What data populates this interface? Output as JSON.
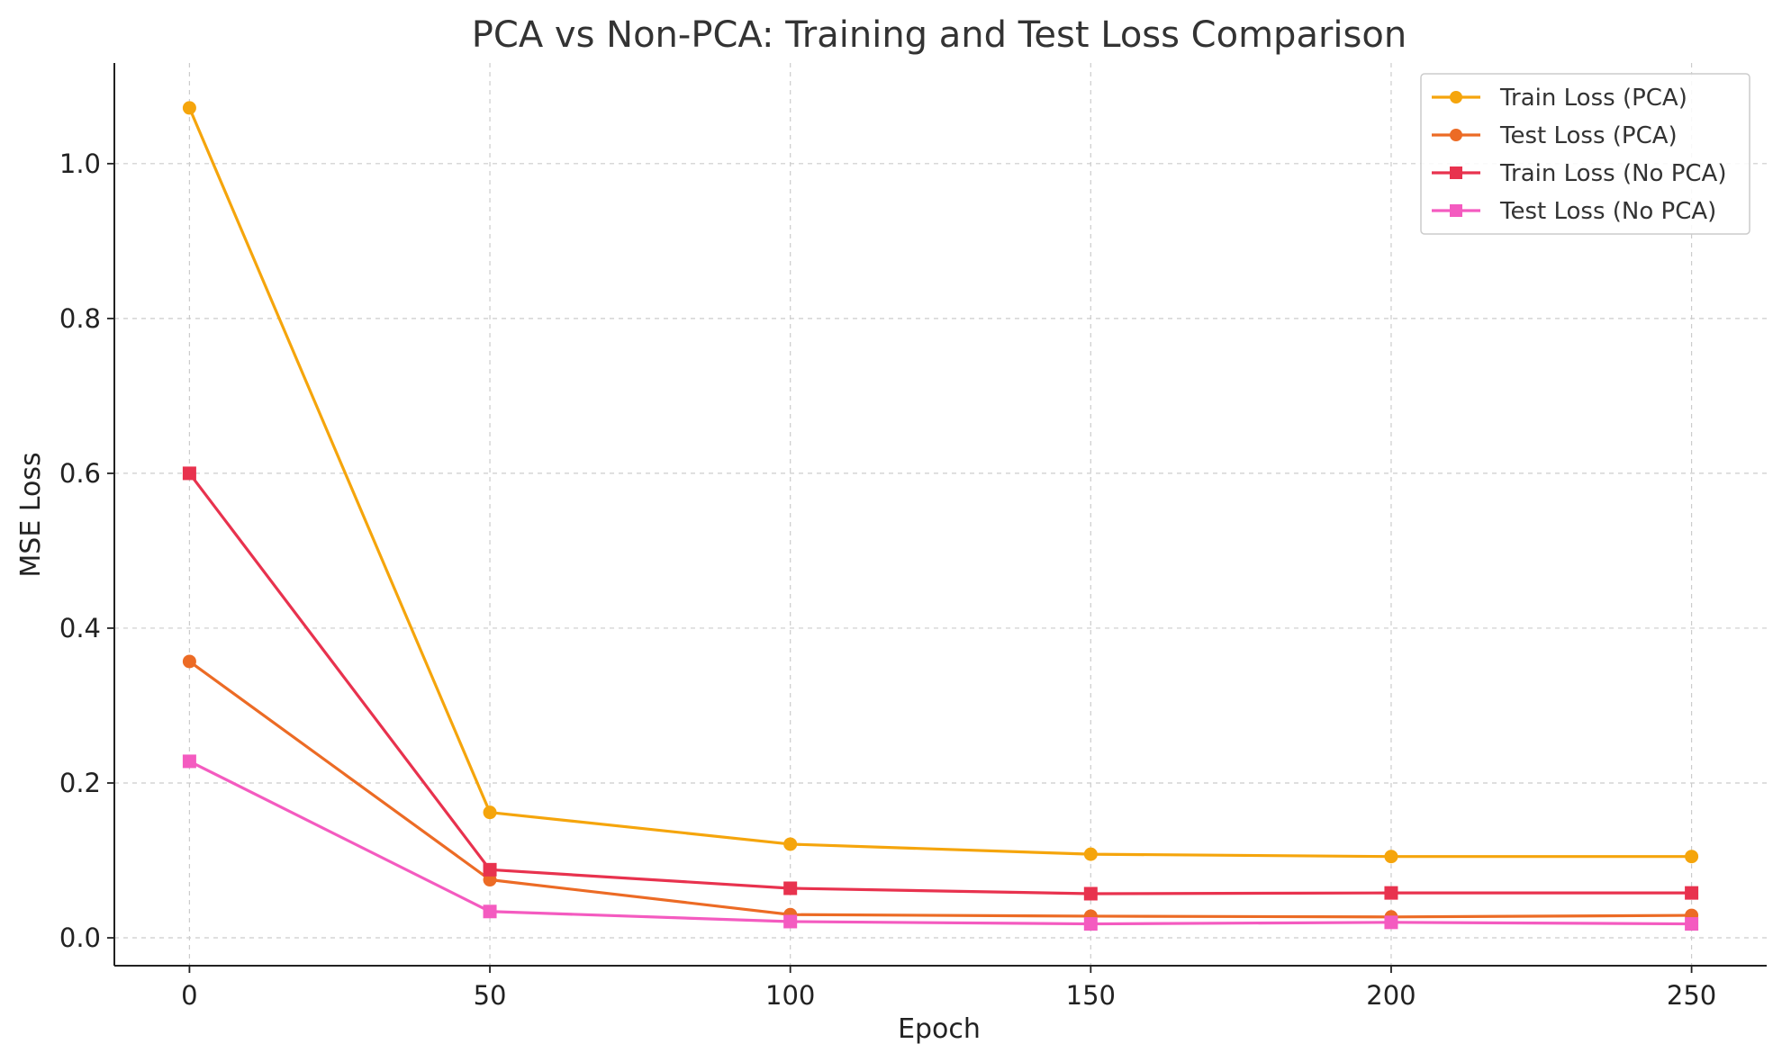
{
  "chart_data": {
    "type": "line",
    "title": "PCA vs Non-PCA: Training and Test Loss Comparison",
    "xlabel": "Epoch",
    "ylabel": "MSE Loss",
    "x": [
      0,
      50,
      100,
      150,
      200,
      250
    ],
    "xticks": [
      "0",
      "50",
      "100",
      "150",
      "200",
      "250"
    ],
    "yticks": [
      "0.0",
      "0.2",
      "0.4",
      "0.6",
      "0.8",
      "1.0"
    ],
    "xlim": [
      -12.5,
      262.5
    ],
    "ylim": [
      -0.036,
      1.13
    ],
    "grid": true,
    "legend_position": "top-right",
    "series": [
      {
        "name": "Train Loss (PCA)",
        "color": "#f5a50c",
        "marker": "circle",
        "values": [
          1.072,
          0.162,
          0.121,
          0.108,
          0.105,
          0.105
        ]
      },
      {
        "name": "Test Loss (PCA)",
        "color": "#ec6b25",
        "marker": "circle",
        "values": [
          0.357,
          0.075,
          0.03,
          0.028,
          0.027,
          0.029
        ]
      },
      {
        "name": "Train Loss (No PCA)",
        "color": "#e8324e",
        "marker": "square",
        "values": [
          0.6,
          0.088,
          0.064,
          0.057,
          0.058,
          0.058
        ]
      },
      {
        "name": "Test Loss (No PCA)",
        "color": "#f45bc0",
        "marker": "square",
        "values": [
          0.228,
          0.034,
          0.021,
          0.018,
          0.02,
          0.018
        ]
      }
    ]
  }
}
